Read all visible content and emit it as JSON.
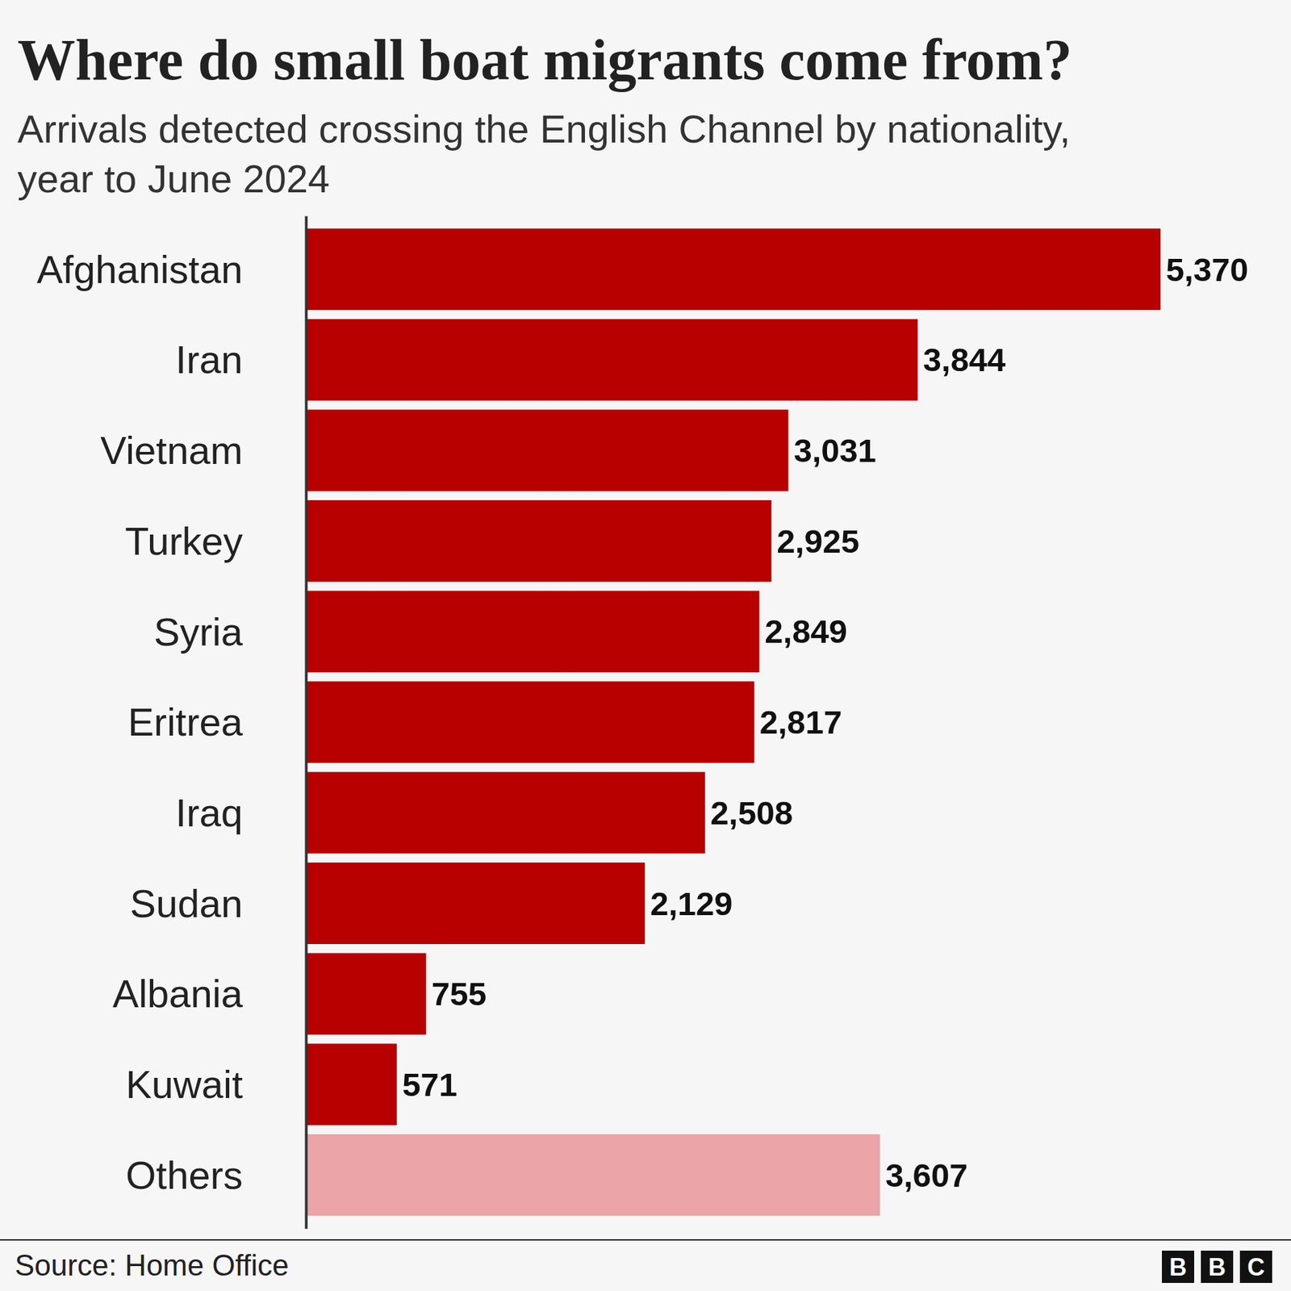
{
  "chart_data": {
    "type": "bar",
    "orientation": "horizontal",
    "title": "Where do small boat migrants come from?",
    "subtitle": [
      "Arrivals detected crossing the English Channel by nationality,",
      "year to June 2024"
    ],
    "categories": [
      "Afghanistan",
      "Iran",
      "Vietnam",
      "Turkey",
      "Syria",
      "Eritrea",
      "Iraq",
      "Sudan",
      "Albania",
      "Kuwait",
      "Others"
    ],
    "values": [
      5370,
      3844,
      3031,
      2925,
      2849,
      2817,
      2508,
      2129,
      755,
      571,
      3607
    ],
    "value_labels": [
      "5,370",
      "3,844",
      "3,031",
      "2,925",
      "2,849",
      "2,817",
      "2,508",
      "2,129",
      "755",
      "571",
      "3,607"
    ],
    "colors": [
      "#b80000",
      "#b80000",
      "#b80000",
      "#b80000",
      "#b80000",
      "#b80000",
      "#b80000",
      "#b80000",
      "#b80000",
      "#b80000",
      "#eba4a7"
    ],
    "xlim": [
      0,
      5370
    ],
    "data_labels": true,
    "tick_labels": "y",
    "grid": false,
    "source": "Source: Home Office",
    "logo": [
      "B",
      "B",
      "C"
    ]
  }
}
